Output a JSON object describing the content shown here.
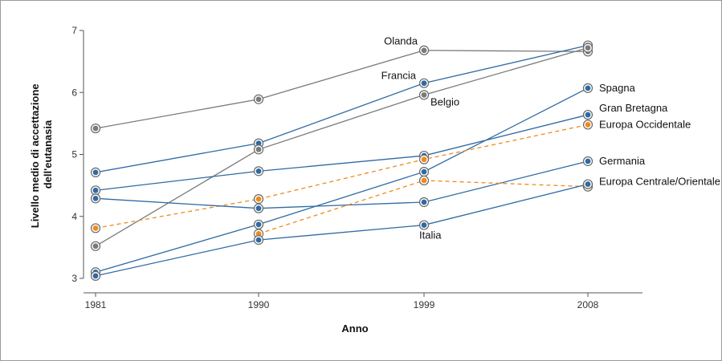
{
  "chart_data": {
    "type": "line",
    "xlabel": "Anno",
    "ylabel_lines": [
      "Livello medio di accettazione",
      "dell'eutanasia"
    ],
    "x": [
      1981,
      1990,
      1999,
      2008
    ],
    "ylim": [
      3,
      7
    ],
    "yticks": [
      3,
      4,
      5,
      6,
      7
    ],
    "grid": false,
    "colors": {
      "country": "#2f6aa3",
      "country_alt": "#7a7a7a",
      "average": "#f08a1c"
    },
    "series": [
      {
        "name": "Olanda",
        "values": [
          5.42,
          5.89,
          6.68,
          6.66
        ],
        "style": "gray-solid"
      },
      {
        "name": "Francia",
        "values": [
          4.71,
          5.18,
          6.15,
          6.76
        ],
        "style": "blue-solid"
      },
      {
        "name": "Belgio",
        "values": [
          3.52,
          5.08,
          5.96,
          6.72
        ],
        "style": "gray-solid"
      },
      {
        "name": "Spagna",
        "values": [
          3.1,
          3.87,
          4.72,
          6.07
        ],
        "style": "blue-solid"
      },
      {
        "name": "Gran Bretagna",
        "values": [
          4.42,
          4.73,
          4.98,
          5.64
        ],
        "style": "blue-solid"
      },
      {
        "name": "Europa Occidentale",
        "values": [
          3.81,
          4.28,
          4.92,
          5.48
        ],
        "style": "orange-dashed"
      },
      {
        "name": "Germania",
        "values": [
          4.29,
          4.13,
          4.23,
          4.89
        ],
        "style": "blue-solid"
      },
      {
        "name": "Europa Centrale/Orientale",
        "values": [
          null,
          3.72,
          4.58,
          4.48
        ],
        "style": "orange-dashed"
      },
      {
        "name": "Italia",
        "values": [
          3.04,
          3.62,
          3.86,
          4.52
        ],
        "style": "blue-solid"
      }
    ]
  }
}
